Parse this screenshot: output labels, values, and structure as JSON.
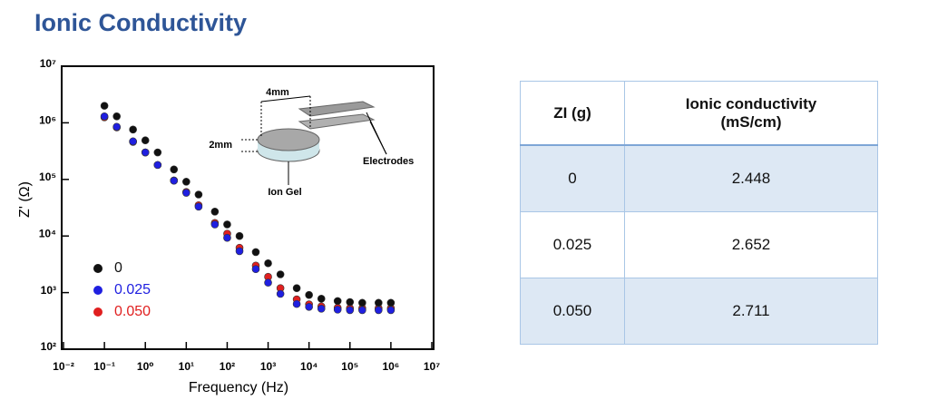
{
  "title": "Ionic Conductivity",
  "chart_data": {
    "type": "scatter",
    "x_label": "Frequency (Hz)",
    "y_label": "Z' (Ω)",
    "xscale": "log",
    "yscale": "log",
    "annotations": [
      "4mm",
      "2mm",
      "Electrodes",
      "Ion Gel"
    ],
    "x": [
      0.1,
      0.2,
      0.5,
      1,
      2,
      5,
      10,
      20,
      50,
      100,
      200,
      500,
      1000,
      2000,
      5000,
      10000,
      20000,
      50000,
      100000,
      200000,
      500000,
      1000000
    ],
    "series": [
      {
        "name": "0",
        "color": "#111111",
        "values": [
          2000000,
          1300000,
          760000,
          490000,
          300000,
          150000,
          91000,
          54000,
          27000,
          16000,
          10000,
          5200,
          3300,
          2100,
          1200,
          910,
          780,
          710,
          680,
          660,
          660,
          660
        ]
      },
      {
        "name": "0.025",
        "color": "#1f1fe0",
        "values": [
          1300000,
          850000,
          470000,
          300000,
          180000,
          95000,
          58000,
          33000,
          16000,
          9300,
          5400,
          2600,
          1500,
          950,
          630,
          560,
          520,
          500,
          490,
          490,
          490,
          490
        ]
      },
      {
        "name": "0.050",
        "color": "#e01f1f",
        "values": [
          1250000,
          830000,
          460000,
          300000,
          180000,
          96000,
          60000,
          35000,
          17000,
          11000,
          6200,
          3000,
          1900,
          1200,
          760,
          620,
          570,
          540,
          530,
          530,
          530,
          530
        ]
      }
    ],
    "xlim": [
      0.01,
      10000000
    ],
    "xticks": [
      {
        "value": 0.01,
        "label": "10⁻²"
      },
      {
        "value": 0.1,
        "label": "10⁻¹"
      },
      {
        "value": 1,
        "label": "10⁰"
      },
      {
        "value": 10,
        "label": "10¹"
      },
      {
        "value": 100,
        "label": "10²"
      },
      {
        "value": 1000,
        "label": "10³"
      },
      {
        "value": 10000,
        "label": "10⁴"
      },
      {
        "value": 100000,
        "label": "10⁵"
      },
      {
        "value": 1000000,
        "label": "10⁶"
      },
      {
        "value": 10000000,
        "label": "10⁷"
      }
    ],
    "ylim": [
      100,
      10000000
    ],
    "yticks": [
      {
        "value": 100,
        "label": "10²"
      },
      {
        "value": 1000,
        "label": "10³"
      },
      {
        "value": 10000,
        "label": "10⁴"
      },
      {
        "value": 100000,
        "label": "10⁵"
      },
      {
        "value": 1000000,
        "label": "10⁶"
      },
      {
        "value": 10000000,
        "label": "10⁷"
      }
    ],
    "legend": "lower left"
  },
  "table": {
    "header": [
      "ZI (g)",
      "Ionic conductivity (mS/cm)"
    ],
    "rows": [
      [
        "0",
        "2.448"
      ],
      [
        "0.025",
        "2.652"
      ],
      [
        "0.050",
        "2.711"
      ]
    ]
  }
}
